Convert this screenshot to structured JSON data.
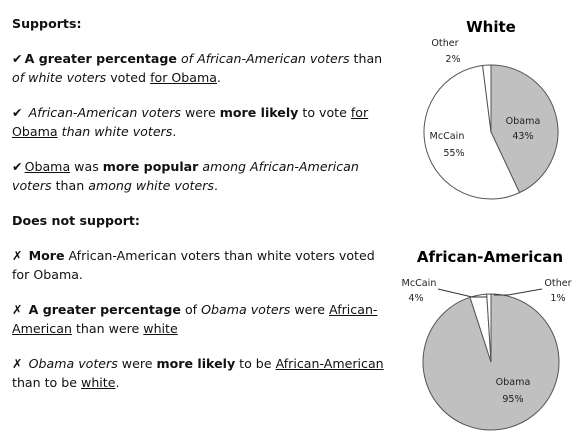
{
  "left": {
    "supports_heading": "Supports:",
    "supports": [
      [
        {
          "t": "✔",
          "s": "mark"
        },
        {
          "t": "A greater percentage",
          "s": "b"
        },
        {
          "t": " "
        },
        {
          "t": "of African-American voters",
          "s": "i"
        },
        {
          "t": " than "
        },
        {
          "t": "of white voters",
          "s": "i"
        },
        {
          "t": " voted "
        },
        {
          "t": "for Obama",
          "s": "u"
        },
        {
          "t": "."
        }
      ],
      [
        {
          "t": "✔",
          "s": "mark"
        },
        {
          "t": " "
        },
        {
          "t": "African-American voters",
          "s": "i"
        },
        {
          "t": " were "
        },
        {
          "t": "more likely",
          "s": "b"
        },
        {
          "t": " to vote "
        },
        {
          "t": "for Obama",
          "s": "u"
        },
        {
          "t": " "
        },
        {
          "t": "than white voters",
          "s": "i"
        },
        {
          "t": "."
        }
      ],
      [
        {
          "t": "✔",
          "s": "mark"
        },
        {
          "t": "Obama",
          "s": "u"
        },
        {
          "t": " was "
        },
        {
          "t": "more popular",
          "s": "b"
        },
        {
          "t": " "
        },
        {
          "t": "among African-American voters",
          "s": "i"
        },
        {
          "t": " than "
        },
        {
          "t": "among white voters",
          "s": "i"
        },
        {
          "t": "."
        }
      ]
    ],
    "not_support_heading": "Does not support:",
    "not_supports": [
      [
        {
          "t": "✗",
          "s": "mark"
        },
        {
          "t": " "
        },
        {
          "t": "More",
          "s": "b"
        },
        {
          "t": " African-American voters than white voters voted for Obama."
        }
      ],
      [
        {
          "t": "✗",
          "s": "mark"
        },
        {
          "t": " "
        },
        {
          "t": "A greater percentage",
          "s": "b"
        },
        {
          "t": " of "
        },
        {
          "t": "Obama voters",
          "s": "i"
        },
        {
          "t": " were "
        },
        {
          "t": "African-American",
          "s": "u"
        },
        {
          "t": " than were "
        },
        {
          "t": "white",
          "s": "u"
        }
      ],
      [
        {
          "t": "✗",
          "s": "mark"
        },
        {
          "t": " "
        },
        {
          "t": "Obama voters",
          "s": "i"
        },
        {
          "t": " were "
        },
        {
          "t": "more likely",
          "s": "b"
        },
        {
          "t": " to be "
        },
        {
          "t": "African-American",
          "s": "u"
        },
        {
          "t": " than to be "
        },
        {
          "t": "white",
          "s": "u"
        },
        {
          "t": "."
        }
      ]
    ]
  },
  "chart_data": [
    {
      "type": "pie",
      "title": "White",
      "slices": [
        {
          "label": "Obama",
          "value": 43,
          "value_label": "43%",
          "color": "#c0c0c0"
        },
        {
          "label": "McCain",
          "value": 55,
          "value_label": "55%",
          "color": "#ffffff"
        },
        {
          "label": "Other",
          "value": 2,
          "value_label": "2%",
          "color": "#ffffff"
        }
      ]
    },
    {
      "type": "pie",
      "title": "African-American",
      "slices": [
        {
          "label": "Obama",
          "value": 95,
          "value_label": "95%",
          "color": "#c0c0c0"
        },
        {
          "label": "McCain",
          "value": 4,
          "value_label": "4%",
          "color": "#ffffff"
        },
        {
          "label": "Other",
          "value": 1,
          "value_label": "1%",
          "color": "#ffffff"
        }
      ]
    }
  ]
}
